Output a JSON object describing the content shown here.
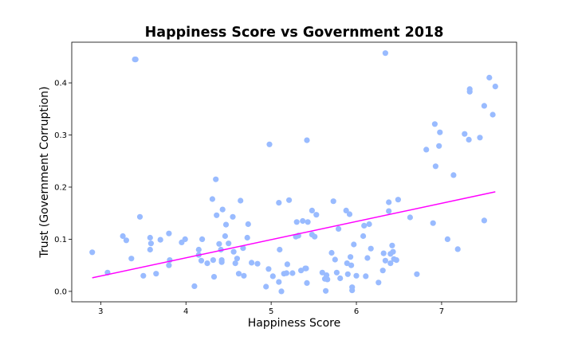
{
  "chart_data": {
    "type": "scatter",
    "title": "Happiness Score vs Government 2018",
    "xlabel": "Happiness Score",
    "ylabel": "Trust (Government Corruption)",
    "xlim": [
      2.66,
      7.88
    ],
    "ylim": [
      -0.02,
      0.478
    ],
    "xticks": [
      "3",
      "4",
      "5",
      "6",
      "7"
    ],
    "yticks": [
      "0.0",
      "0.1",
      "0.2",
      "0.3",
      "0.4"
    ],
    "xtick_values": [
      3,
      4,
      5,
      6,
      7
    ],
    "ytick_values": [
      0.0,
      0.1,
      0.2,
      0.3,
      0.4
    ],
    "grid": false,
    "point_color": "#99bbff",
    "trendline": {
      "x": [
        2.9,
        7.63
      ],
      "y": [
        0.026,
        0.191
      ],
      "color": "#ff00ff"
    },
    "x": [
      2.9,
      3.08,
      3.26,
      3.3,
      3.36,
      3.4,
      3.46,
      3.5,
      3.58,
      3.59,
      3.58,
      3.65,
      3.7,
      3.8,
      3.81,
      3.8,
      3.95,
      3.99,
      4.1,
      4.15,
      4.15,
      4.19,
      4.18,
      4.25,
      4.31,
      4.32,
      4.33,
      4.35,
      4.36,
      4.39,
      4.41,
      4.42,
      4.42,
      4.43,
      4.46,
      4.47,
      4.5,
      4.55,
      4.56,
      4.58,
      4.6,
      4.62,
      4.64,
      4.67,
      4.68,
      4.72,
      4.73,
      4.77,
      4.84,
      4.94,
      4.97,
      5.02,
      5.09,
      5.09,
      5.1,
      5.12,
      5.15,
      5.18,
      5.19,
      5.21,
      5.25,
      5.29,
      5.3,
      5.32,
      5.35,
      5.37,
      5.4,
      5.41,
      5.42,
      5.43,
      5.48,
      5.48,
      5.51,
      5.53,
      5.6,
      5.63,
      5.64,
      5.65,
      5.66,
      5.71,
      5.73,
      5.75,
      5.77,
      5.79,
      5.81,
      5.88,
      5.89,
      5.9,
      5.92,
      5.93,
      5.94,
      5.95,
      5.95,
      5.97,
      6.0,
      6.08,
      6.09,
      6.11,
      6.13,
      6.15,
      6.17,
      6.26,
      6.31,
      6.32,
      6.34,
      6.38,
      6.38,
      6.4,
      6.4,
      6.42,
      6.43,
      6.44,
      6.47,
      6.49,
      6.63,
      6.71,
      6.82,
      6.9,
      6.92,
      6.93,
      6.97,
      6.98,
      7.07,
      7.14,
      7.19,
      7.27,
      7.32,
      7.33,
      7.33,
      7.45,
      7.5,
      7.5,
      7.56,
      7.6,
      7.63,
      6.34,
      3.41,
      5.42,
      4.98
    ],
    "y": [
      0.075,
      0.036,
      0.106,
      0.098,
      0.063,
      0.445,
      0.143,
      0.03,
      0.103,
      0.092,
      0.08,
      0.034,
      0.099,
      0.111,
      0.06,
      0.05,
      0.094,
      0.1,
      0.01,
      0.07,
      0.08,
      0.1,
      0.059,
      0.054,
      0.177,
      0.06,
      0.028,
      0.215,
      0.146,
      0.091,
      0.08,
      0.056,
      0.06,
      0.157,
      0.106,
      0.128,
      0.092,
      0.143,
      0.076,
      0.054,
      0.063,
      0.034,
      0.174,
      0.083,
      0.03,
      0.103,
      0.129,
      0.055,
      0.053,
      0.009,
      0.043,
      0.029,
      0.17,
      0.018,
      0.08,
      0.0,
      0.034,
      0.035,
      0.052,
      0.175,
      0.035,
      0.105,
      0.133,
      0.107,
      0.04,
      0.135,
      0.044,
      0.044,
      0.016,
      0.133,
      0.155,
      0.109,
      0.105,
      0.147,
      0.036,
      0.024,
      0.001,
      0.031,
      0.023,
      0.074,
      0.173,
      0.061,
      0.036,
      0.12,
      0.025,
      0.155,
      0.054,
      0.033,
      0.148,
      0.066,
      0.05,
      0.002,
      0.008,
      0.09,
      0.03,
      0.106,
      0.126,
      0.029,
      0.064,
      0.129,
      0.082,
      0.017,
      0.04,
      0.073,
      0.059,
      0.154,
      0.171,
      0.072,
      0.054,
      0.088,
      0.076,
      0.062,
      0.06,
      0.176,
      0.142,
      0.033,
      0.272,
      0.131,
      0.321,
      0.24,
      0.279,
      0.305,
      0.1,
      0.223,
      0.081,
      0.302,
      0.291,
      0.383,
      0.388,
      0.295,
      0.356,
      0.136,
      0.41,
      0.339,
      0.393,
      0.457,
      0.445,
      0.29,
      0.282
    ]
  }
}
